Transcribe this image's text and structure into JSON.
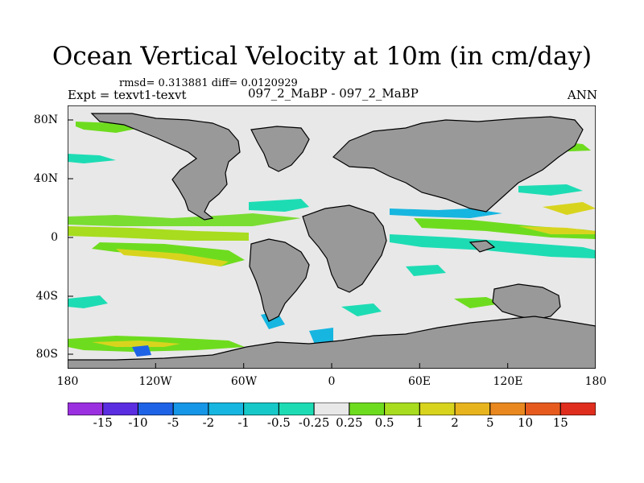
{
  "title": "Ocean Vertical Velocity at 10m (in cm/day)",
  "stats": "rmsd= 0.313881 diff= 0.0120929",
  "expt": "Expt = texvt1-texvt",
  "case": "097_2_MaBP - 097_2_MaBP",
  "season": "ANN",
  "lon_labels": [
    "180",
    "120W",
    "60W",
    "0",
    "60E",
    "120E",
    "180"
  ],
  "lat_labels": [
    "80N",
    "40N",
    "0",
    "40S",
    "80S"
  ],
  "colorbar": {
    "levels": [
      "-15",
      "-10",
      "-5",
      "-2",
      "-1",
      "-0.5",
      "-0.25",
      "0.25",
      "0.5",
      "1",
      "2",
      "5",
      "10",
      "15"
    ],
    "colors": [
      "#9b30e0",
      "#5a2ee0",
      "#1e63e6",
      "#1696e6",
      "#16b6e0",
      "#17c8c8",
      "#1ddcb4",
      "#e8e8e8",
      "#6edc1e",
      "#a8dc1e",
      "#d8d41e",
      "#e8b41e",
      "#e8881e",
      "#e65a1e",
      "#e02e1e"
    ]
  },
  "land_color": "#999999",
  "ocean_color": "#e8e8e8"
}
